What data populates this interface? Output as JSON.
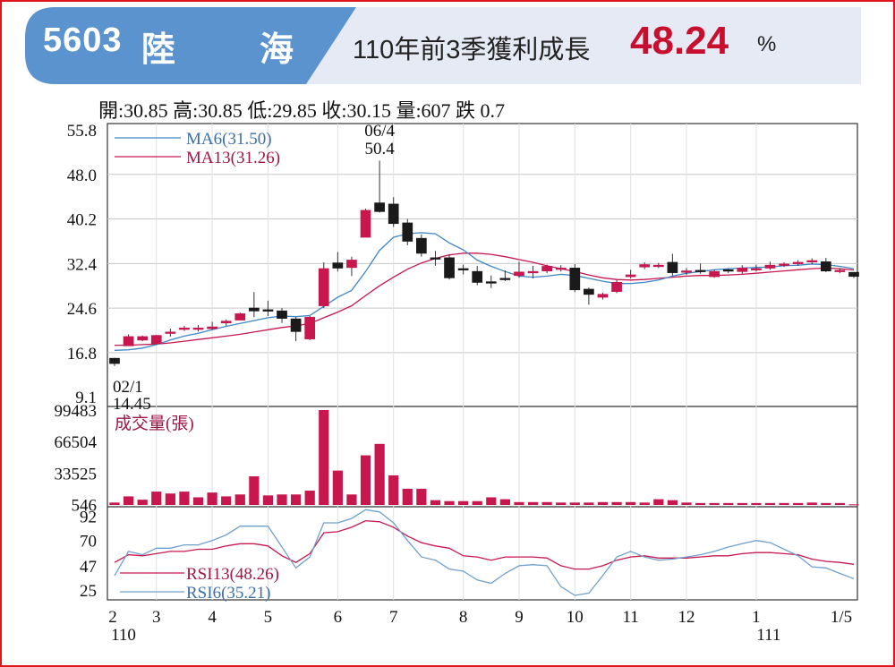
{
  "header": {
    "code": "5603",
    "name_1": "陸",
    "name_2": "海",
    "headline": "110年前3季獲利成長",
    "growth_value": "48.24",
    "growth_unit": "%",
    "colors": {
      "banner": "#5b93cf",
      "banner_light": "#e6eaf5",
      "highlight": "#c8102e"
    }
  },
  "quote": "開:30.85 高:30.85 低:29.85 收:30.15 量:607 跌 0.7",
  "chart_data": [
    {
      "type": "candlestick",
      "y_ticks": [
        "55.8",
        "48.0",
        "40.2",
        "32.4",
        "24.6",
        "16.8",
        "9.1"
      ],
      "ylim": [
        9.1,
        55.8
      ],
      "legend": [
        "MA6(31.50)",
        "MA13(31.26)"
      ],
      "annotations": [
        {
          "date": "06/4",
          "value": "50.4",
          "label_top": "06/4",
          "label_bottom": "50.4"
        },
        {
          "date": "02/1",
          "value": "14.45",
          "label_top": "02/1",
          "label_bottom": "14.45"
        }
      ],
      "colors": {
        "up": "#c8174f",
        "down": "#1a1a1a",
        "ma6": "#3f86c4",
        "ma13": "#c8174f"
      },
      "candles": [
        [
          15.8,
          14.9,
          15.9,
          14.45
        ],
        [
          18.0,
          19.6,
          20.0,
          18.0
        ],
        [
          19.0,
          19.6,
          19.8,
          18.8
        ],
        [
          18.4,
          19.8,
          19.9,
          18.2
        ],
        [
          20.2,
          20.4,
          21.0,
          19.6
        ],
        [
          20.9,
          21.1,
          21.5,
          20.6
        ],
        [
          21.1,
          21.1,
          21.6,
          20.5
        ],
        [
          21.0,
          21.3,
          22.2,
          20.8
        ],
        [
          22.0,
          22.3,
          22.6,
          21.5
        ],
        [
          22.5,
          23.6,
          23.8,
          22.5
        ],
        [
          24.6,
          24.1,
          27.4,
          23.0
        ],
        [
          24.3,
          24.2,
          25.9,
          23.2
        ],
        [
          24.1,
          22.8,
          24.6,
          22.0
        ],
        [
          22.7,
          20.5,
          23.0,
          18.8
        ],
        [
          19.2,
          23.0,
          23.2,
          19.0
        ],
        [
          25.0,
          31.5,
          32.6,
          24.6
        ],
        [
          32.5,
          31.6,
          34.4,
          31.0
        ],
        [
          31.7,
          33.0,
          33.6,
          30.2
        ],
        [
          37.0,
          41.7,
          42.0,
          37.0
        ],
        [
          43.0,
          41.5,
          50.4,
          41.3
        ],
        [
          42.8,
          39.4,
          44.0,
          38.8
        ],
        [
          39.5,
          36.3,
          40.2,
          35.6
        ],
        [
          36.8,
          34.2,
          37.5,
          33.6
        ],
        [
          33.4,
          33.3,
          34.6,
          32.0
        ],
        [
          33.4,
          29.9,
          33.9,
          29.6
        ],
        [
          31.5,
          31.4,
          32.2,
          30.5
        ],
        [
          31.0,
          29.1,
          32.0,
          28.6
        ],
        [
          29.2,
          29.1,
          30.3,
          28.1
        ],
        [
          29.8,
          29.7,
          31.2,
          29.3
        ],
        [
          30.3,
          30.9,
          32.7,
          29.9
        ],
        [
          31.0,
          31.0,
          32.0,
          29.8
        ],
        [
          31.1,
          31.9,
          32.2,
          30.7
        ],
        [
          31.6,
          31.6,
          32.1,
          31.0
        ],
        [
          31.6,
          27.8,
          32.3,
          27.4
        ],
        [
          27.9,
          27.0,
          28.2,
          25.2
        ],
        [
          26.5,
          27.0,
          27.3,
          26.1
        ],
        [
          27.5,
          29.1,
          29.5,
          27.2
        ],
        [
          30.1,
          30.4,
          31.3,
          29.8
        ],
        [
          31.8,
          32.2,
          32.6,
          31.4
        ],
        [
          31.9,
          32.1,
          32.5,
          31.6
        ],
        [
          32.6,
          30.8,
          34.1,
          30.3
        ],
        [
          31.1,
          31.1,
          31.6,
          30.4
        ],
        [
          31.2,
          31.1,
          32.4,
          30.6
        ],
        [
          30.1,
          31.0,
          31.3,
          29.9
        ],
        [
          31.3,
          31.2,
          31.5,
          30.7
        ],
        [
          31.0,
          31.6,
          32.1,
          30.6
        ],
        [
          31.4,
          31.5,
          32.2,
          31.0
        ],
        [
          31.6,
          32.1,
          32.7,
          31.3
        ],
        [
          32.2,
          32.3,
          32.6,
          31.8
        ],
        [
          32.6,
          32.6,
          33.0,
          32.0
        ],
        [
          32.9,
          32.9,
          33.3,
          32.3
        ],
        [
          32.7,
          31.1,
          33.4,
          30.9
        ],
        [
          31.1,
          31.2,
          31.6,
          30.7
        ],
        [
          30.85,
          30.15,
          30.85,
          29.85
        ]
      ],
      "ma6": [
        17.2,
        17.3,
        17.6,
        18.2,
        19.0,
        19.7,
        20.2,
        20.8,
        21.4,
        21.9,
        22.4,
        22.9,
        23.2,
        23.1,
        23.3,
        24.9,
        26.5,
        27.7,
        31.0,
        34.7,
        37.0,
        37.6,
        37.8,
        37.6,
        36.0,
        34.8,
        33.0,
        31.9,
        31.0,
        30.2,
        30.0,
        30.2,
        30.5,
        30.3,
        29.8,
        29.3,
        28.9,
        28.9,
        29.1,
        29.5,
        30.2,
        30.7,
        31.0,
        31.3,
        31.5,
        31.6,
        31.7,
        31.8,
        32.0,
        32.1,
        32.3,
        32.2,
        31.9,
        31.5
      ],
      "ma13": [
        18.1,
        18.1,
        18.2,
        18.3,
        18.5,
        18.8,
        19.1,
        19.4,
        19.7,
        20.0,
        20.4,
        20.8,
        21.2,
        21.5,
        21.9,
        22.9,
        23.9,
        25.0,
        26.8,
        28.5,
        30.0,
        31.4,
        32.5,
        33.3,
        33.9,
        34.2,
        34.2,
        34.0,
        33.6,
        33.1,
        32.6,
        32.0,
        31.5,
        31.0,
        30.4,
        29.9,
        29.6,
        29.5,
        29.6,
        29.8,
        30.0,
        30.2,
        30.3,
        30.3,
        30.4,
        30.5,
        30.7,
        30.9,
        31.1,
        31.3,
        31.5,
        31.6,
        31.5,
        31.26
      ]
    },
    {
      "type": "bar",
      "title": "成交量(張)",
      "y_ticks": [
        "99483",
        "66504",
        "33525",
        "546"
      ],
      "ylim": [
        0,
        99483
      ],
      "color": "#c8174f",
      "values": [
        2500,
        9000,
        5500,
        14000,
        12000,
        14000,
        8000,
        13000,
        9000,
        11000,
        30000,
        10000,
        11000,
        11000,
        15000,
        99483,
        36000,
        11000,
        52000,
        64000,
        31000,
        17000,
        17000,
        5000,
        4000,
        4000,
        4000,
        8000,
        6000,
        3000,
        3000,
        3000,
        2500,
        2500,
        2500,
        3000,
        3000,
        3000,
        2500,
        6000,
        5000,
        2500,
        2000,
        2000,
        2000,
        2000,
        2000,
        2000,
        2000,
        2000,
        2500,
        2000,
        2000,
        607
      ]
    },
    {
      "type": "line",
      "y_ticks": [
        "92",
        "70",
        "47",
        "25"
      ],
      "ylim": [
        20,
        95
      ],
      "legend": [
        "RSI13(48.26)",
        "RSI6(35.21)"
      ],
      "colors": {
        "rsi13": "#c8174f",
        "rsi6": "#6fa0cc"
      },
      "x_labels": [
        {
          "top": "2",
          "bottom": "110"
        },
        {
          "top": "3",
          "bottom": ""
        },
        {
          "top": "4",
          "bottom": ""
        },
        {
          "top": "5",
          "bottom": ""
        },
        {
          "top": "6",
          "bottom": ""
        },
        {
          "top": "7",
          "bottom": ""
        },
        {
          "top": "8",
          "bottom": ""
        },
        {
          "top": "9",
          "bottom": ""
        },
        {
          "top": "10",
          "bottom": ""
        },
        {
          "top": "11",
          "bottom": ""
        },
        {
          "top": "12",
          "bottom": ""
        },
        {
          "top": "1",
          "bottom": "111"
        },
        {
          "top": "1/5",
          "bottom": ""
        }
      ],
      "x_label_index": [
        0,
        3,
        7,
        11,
        16,
        20,
        25,
        29,
        33,
        37,
        41,
        46,
        53
      ],
      "rsi13": [
        50,
        57,
        56,
        58,
        60,
        60,
        62,
        62,
        65,
        67,
        67,
        65,
        56,
        50,
        58,
        77,
        78,
        82,
        88,
        87,
        82,
        74,
        68,
        65,
        63,
        56,
        55,
        52,
        55,
        55,
        55,
        54,
        47,
        44,
        44,
        47,
        52,
        55,
        56,
        54,
        54,
        54,
        55,
        56,
        56,
        58,
        59,
        59,
        58,
        57,
        53,
        51,
        50,
        48.26
      ],
      "rsi6": [
        38,
        60,
        57,
        63,
        63,
        66,
        66,
        70,
        75,
        83,
        83,
        83,
        64,
        45,
        55,
        86,
        86,
        90,
        98,
        96,
        86,
        70,
        55,
        52,
        44,
        42,
        34,
        31,
        40,
        47,
        48,
        47,
        28,
        20,
        22,
        38,
        55,
        60,
        55,
        52,
        53,
        55,
        57,
        60,
        64,
        67,
        70,
        68,
        62,
        56,
        46,
        45,
        40,
        35.21
      ]
    }
  ]
}
